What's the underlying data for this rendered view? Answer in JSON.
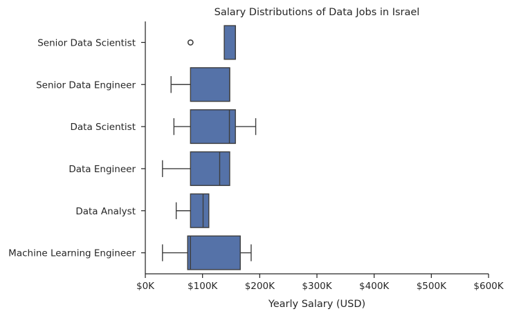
{
  "chart_data": {
    "type": "box",
    "title": "Salary Distributions of Data Jobs in Israel",
    "xlabel": "Yearly Salary (USD)",
    "ylabel": "",
    "xlim": [
      0,
      600000
    ],
    "xticks": [
      0,
      100000,
      200000,
      300000,
      400000,
      500000,
      600000
    ],
    "xtick_labels": [
      "$0K",
      "$100K",
      "$200K",
      "$300K",
      "$400K",
      "$500K",
      "$600K"
    ],
    "box_color": "#5572a8",
    "line_color": "#3d3d3d",
    "categories": [
      "Senior Data Scientist",
      "Senior Data Engineer",
      "Data Scientist",
      "Data Engineer",
      "Data Analyst",
      "Machine Learning Engineer"
    ],
    "boxes": [
      {
        "label": "Senior Data Scientist",
        "whisker_low": 138000,
        "q1": 138000,
        "median": 157500,
        "q3": 157500,
        "whisker_high": 157500,
        "fliers": [
          79000
        ]
      },
      {
        "label": "Senior Data Engineer",
        "whisker_low": 45000,
        "q1": 79000,
        "median": 147500,
        "q3": 147500,
        "whisker_high": 147500,
        "fliers": []
      },
      {
        "label": "Data Scientist",
        "whisker_low": 50000,
        "q1": 79000,
        "median": 147000,
        "q3": 157500,
        "whisker_high": 193000,
        "fliers": []
      },
      {
        "label": "Data Engineer",
        "whisker_low": 30000,
        "q1": 79000,
        "median": 130000,
        "q3": 147500,
        "whisker_high": 147500,
        "fliers": []
      },
      {
        "label": "Data Analyst",
        "whisker_low": 54000,
        "q1": 79000,
        "median": 101000,
        "q3": 111000,
        "whisker_high": 111000,
        "fliers": []
      },
      {
        "label": "Machine Learning Engineer",
        "whisker_low": 30000,
        "q1": 74000,
        "median": 79000,
        "q3": 166000,
        "whisker_high": 185000,
        "fliers": []
      }
    ]
  }
}
